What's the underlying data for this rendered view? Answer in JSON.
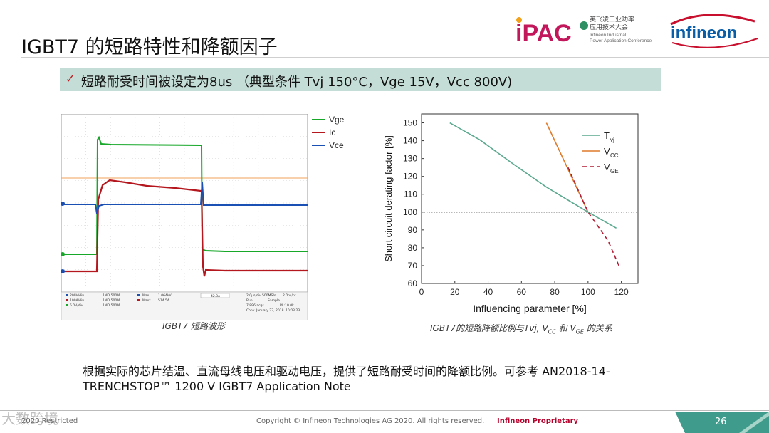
{
  "title": "IGBT7 的短路特性和降额因子",
  "logos": {
    "ipac_text": "iPAC",
    "ipac_cn": "英飞凌工业功率",
    "ipac_cn2": "应用技术大会",
    "ipac_en1": "Infineon Industrial",
    "ipac_en2": "Power Application Conference",
    "infineon": "infineon"
  },
  "bullet": {
    "icon": "check-icon",
    "text": "短路耐受时间被设定为8us （典型条件 Tvj 150°C，Vge 15V，Vcc 800V)"
  },
  "waveform": {
    "legend": [
      "Vge",
      "Ic",
      "Vce"
    ],
    "colors": {
      "vge": "#17a82a",
      "ic": "#b4171d",
      "vce": "#1a4fb3"
    },
    "caption": "IGBT7 短路波形",
    "readout": {
      "channels": [
        "200V/div",
        "100A/div",
        "5.0V/div"
      ],
      "impedance": [
        "1MΩ 500M",
        "1MΩ 500M",
        "1MΩ 500M"
      ],
      "max_labels": [
        "Max",
        "Max*"
      ],
      "max_values": [
        "1.064kV",
        "514.5A"
      ],
      "cursor": "42.8A",
      "timebase": [
        "2.0μs/div",
        "500MS/s",
        "2.0ns/pt"
      ],
      "run": [
        "Run",
        "Sample"
      ],
      "acq": [
        "7 896 acqs",
        "RL:10.0k"
      ],
      "date": "Conv. January 23, 2018",
      "time": "10:03:23"
    }
  },
  "chart_data": {
    "type": "line",
    "title": "",
    "caption_main": "IGBT7的短路降额比例与Tvj, ",
    "caption_vcc": "V",
    "caption_vcc_sub": "CC",
    "caption_mid": " 和 ",
    "caption_vge": "V",
    "caption_vge_sub": "GE",
    "caption_end": " 的关系",
    "xlabel": "Influencing parameter [%]",
    "ylabel": "Short circuit derating factor [%]",
    "xlim": [
      0,
      130
    ],
    "ylim": [
      60,
      155
    ],
    "xticks": [
      0,
      20,
      40,
      60,
      80,
      100,
      120
    ],
    "yticks": [
      60,
      70,
      80,
      90,
      100,
      110,
      120,
      130,
      140,
      150
    ],
    "reference_line": 100,
    "series": [
      {
        "name": "T",
        "sub": "vj",
        "color": "#5aa88f",
        "dash": "",
        "x": [
          17,
          35,
          55,
          75,
          100,
          117
        ],
        "y": [
          150,
          140.5,
          127,
          114,
          100,
          91
        ]
      },
      {
        "name": "V",
        "sub": "CC",
        "color": "#e07a2a",
        "dash": "",
        "x": [
          75,
          86,
          100
        ],
        "y": [
          150,
          128,
          100
        ]
      },
      {
        "name": "V",
        "sub": "GE",
        "color": "#b01d35",
        "dash": "6,4",
        "x": [
          88,
          100,
          112,
          119
        ],
        "y": [
          125,
          100,
          84,
          69
        ]
      }
    ]
  },
  "body": "根据实际的芯片结温、直流母线电压和驱动电压，提供了短路耐受时间的降额比例。可参考 AN2018-14-TRENCHSTOP™ 1200 V IGBT7 Application Note",
  "footer": {
    "left": "2020 Restricted",
    "center": "Copyright © Infineon Technologies AG 2020. All rights reserved.",
    "proprietary": "Infineon Proprietary",
    "page": "26",
    "watermark": "大数跨境"
  }
}
